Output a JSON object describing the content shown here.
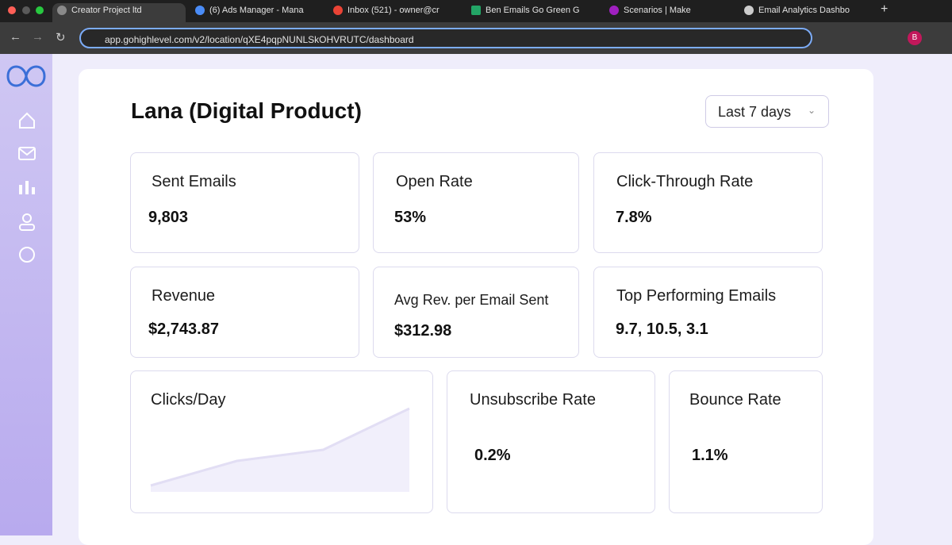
{
  "browser": {
    "tabs": [
      "Creator Project ltd",
      "(6) Ads Manager - Mana",
      "Inbox (521) - owner@cr",
      "Ben Emails Go Green G",
      "Scenarios | Make",
      "Email Analytics Dashbo"
    ],
    "url": "app.gohighlevel.com/v2/location/qXE4pqpNUNLSkOHVRUTC/dashboard",
    "profile": "B"
  },
  "dashboard": {
    "title": "Lana (Digital Product)",
    "date_range": "Last 7 days",
    "cards": [
      {
        "label": "Sent Emails",
        "value": "9,803"
      },
      {
        "label": "Open Rate",
        "value": "53%"
      },
      {
        "label": "Click-Through Rate",
        "value": "7.8%"
      },
      {
        "label": "Revenue",
        "value": "$2,743.87"
      },
      {
        "label": "Avg Rev. per Email Sent",
        "value": "$312.98"
      },
      {
        "label": "Top Performing Emails",
        "value": "9.7, 10.5, 3.1"
      },
      {
        "label": "Unsubscribe Rate",
        "value": "0.2%"
      },
      {
        "label": "Bounce Rate",
        "value": "1.1%"
      }
    ],
    "clicks_chart": {
      "type": "area",
      "title": "Clicks/Day",
      "values": [
        8,
        39,
        53,
        105
      ]
    }
  }
}
